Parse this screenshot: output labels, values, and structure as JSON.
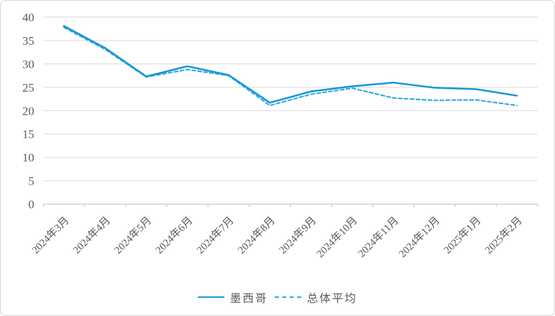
{
  "chart_data": {
    "type": "line",
    "categories": [
      "2024年3月",
      "2024年4月",
      "2024年5月",
      "2024年6月",
      "2024年7月",
      "2024年8月",
      "2024年9月",
      "2024年10月",
      "2024年11月",
      "2024年12月",
      "2025年1月",
      "2025年2月"
    ],
    "series": [
      {
        "id": "mexico",
        "name": "墨西哥",
        "line_style": "solid",
        "color": "#1898d5",
        "values": [
          38.1,
          33.4,
          27.3,
          29.5,
          27.6,
          21.7,
          24.1,
          25.2,
          26.0,
          24.9,
          24.6,
          23.2
        ]
      },
      {
        "id": "overall-average",
        "name": "总体平均",
        "line_style": "dashed",
        "color": "#2baae2",
        "values": [
          37.8,
          33.1,
          27.2,
          28.8,
          27.5,
          21.1,
          23.5,
          24.8,
          22.7,
          22.2,
          22.3,
          21.1
        ]
      }
    ],
    "title": "",
    "xlabel": "",
    "ylabel": "",
    "ylim": [
      0,
      40
    ],
    "y_ticks": [
      0,
      5,
      10,
      15,
      20,
      25,
      30,
      35,
      40
    ],
    "grid": "horizontal",
    "legend_position": "bottom-center",
    "colors": {
      "gridline": "#d9d9d9",
      "axis_line": "#bfbfbf",
      "tick_text": "#595959"
    }
  }
}
